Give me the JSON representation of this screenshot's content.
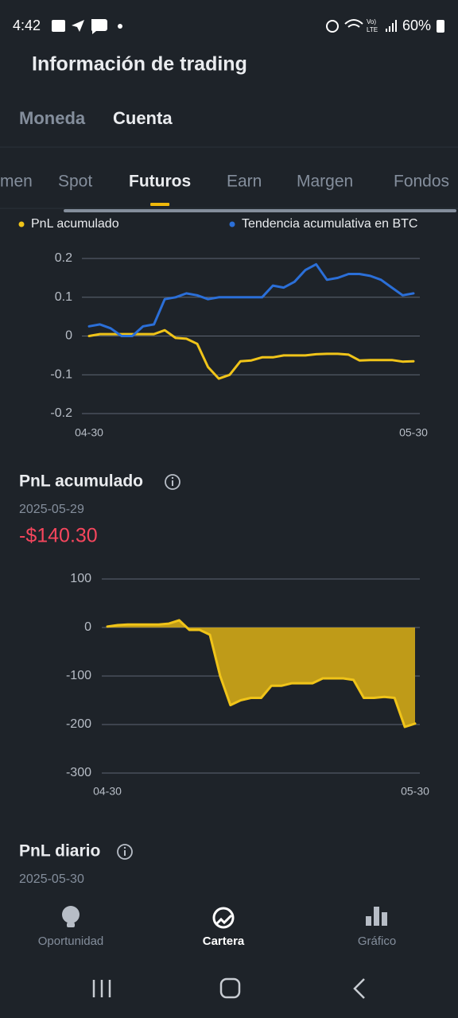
{
  "status_bar": {
    "time": "4:42",
    "battery": "60%"
  },
  "header": {
    "title": "Información de trading"
  },
  "tabs": [
    "Moneda",
    "Cuenta"
  ],
  "active_tab": 1,
  "subtabs": [
    "men",
    "Spot",
    "Futuros",
    "Earn",
    "Margen",
    "Fondos"
  ],
  "active_subtab": 2,
  "chart_data": [
    {
      "type": "line",
      "legend": "top",
      "categories": [
        "04-30",
        null,
        null,
        null,
        null,
        null,
        null,
        null,
        null,
        null,
        null,
        null,
        null,
        null,
        null,
        null,
        null,
        null,
        null,
        null,
        null,
        null,
        null,
        null,
        null,
        null,
        null,
        null,
        null,
        null,
        "05-30"
      ],
      "series": [
        {
          "name": "PnL acumulado",
          "color": "#f0c419",
          "values": [
            0.0,
            0.005,
            0.005,
            0.005,
            0.005,
            0.005,
            0.005,
            0.015,
            -0.005,
            -0.007,
            -0.02,
            -0.08,
            -0.11,
            -0.1,
            -0.065,
            -0.063,
            -0.055,
            -0.055,
            -0.05,
            -0.05,
            -0.05,
            -0.047,
            -0.046,
            -0.046,
            -0.048,
            -0.063,
            -0.062,
            -0.062,
            -0.062,
            -0.066,
            -0.065
          ]
        },
        {
          "name": "Tendencia acumulativa en BTC",
          "color": "#2b6fd8",
          "values": [
            0.025,
            0.03,
            0.02,
            0.0,
            0.0,
            0.025,
            0.03,
            0.095,
            0.1,
            0.11,
            0.105,
            0.095,
            0.1,
            0.1,
            0.1,
            0.1,
            0.1,
            0.13,
            0.125,
            0.14,
            0.17,
            0.185,
            0.145,
            0.15,
            0.16,
            0.16,
            0.155,
            0.145,
            0.125,
            0.105,
            0.11
          ]
        }
      ],
      "ylim": [
        -0.2,
        0.2
      ],
      "yticks": [
        0.2,
        0.1,
        0,
        -0.1,
        -0.2
      ],
      "grid": true
    },
    {
      "type": "area",
      "categories": [
        "04-30",
        null,
        null,
        null,
        null,
        null,
        null,
        null,
        null,
        null,
        null,
        null,
        null,
        null,
        null,
        null,
        null,
        null,
        null,
        null,
        null,
        null,
        null,
        null,
        null,
        null,
        null,
        null,
        null,
        null,
        "05-30"
      ],
      "series": [
        {
          "name": "PnL acumulado",
          "color": "#f0c419",
          "fill": "#bf9b18",
          "values": [
            2,
            5,
            6,
            6,
            6,
            6,
            8,
            15,
            -5,
            -5,
            -15,
            -100,
            -160,
            -150,
            -145,
            -145,
            -120,
            -120,
            -115,
            -115,
            -115,
            -105,
            -105,
            -105,
            -108,
            -145,
            -145,
            -143,
            -145,
            -205,
            -198
          ]
        }
      ],
      "ylim": [
        -300,
        100
      ],
      "yticks": [
        100,
        0,
        -100,
        -200,
        -300
      ],
      "grid": true
    }
  ],
  "pnl_summary": {
    "title": "PnL acumulado",
    "date": "2025-05-29",
    "value": "-$140.30"
  },
  "daily": {
    "title": "PnL diario",
    "date": "2025-05-30"
  },
  "bottom_nav": [
    "Oportunidad",
    "Cartera",
    "Gráfico"
  ],
  "active_nav": 1
}
